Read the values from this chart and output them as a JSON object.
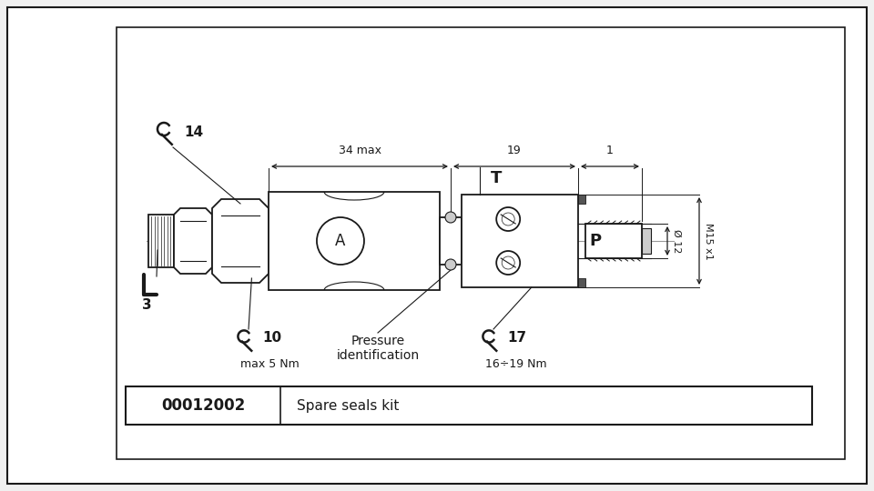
{
  "bg_color": "#f0f0f0",
  "line_color": "#1a1a1a",
  "gray_color": "#999999",
  "darkgray": "#555555",
  "lightgray": "#cccccc",
  "part_number": "00012002",
  "description": "Spare seals kit",
  "dim_34": "34 max",
  "dim_19": "19",
  "dim_1": "1",
  "label_T": "T",
  "label_P": "P",
  "label_A": "A",
  "label_phi12": "Ø 12",
  "label_M15x1": "M15 x1",
  "label_14": "14",
  "label_3": "3",
  "label_10": "10",
  "label_17": "17",
  "label_max5Nm": "max 5 Nm",
  "label_pressure_1": "Pressure",
  "label_pressure_2": "identification",
  "label_16_19": "16÷19 Nm"
}
